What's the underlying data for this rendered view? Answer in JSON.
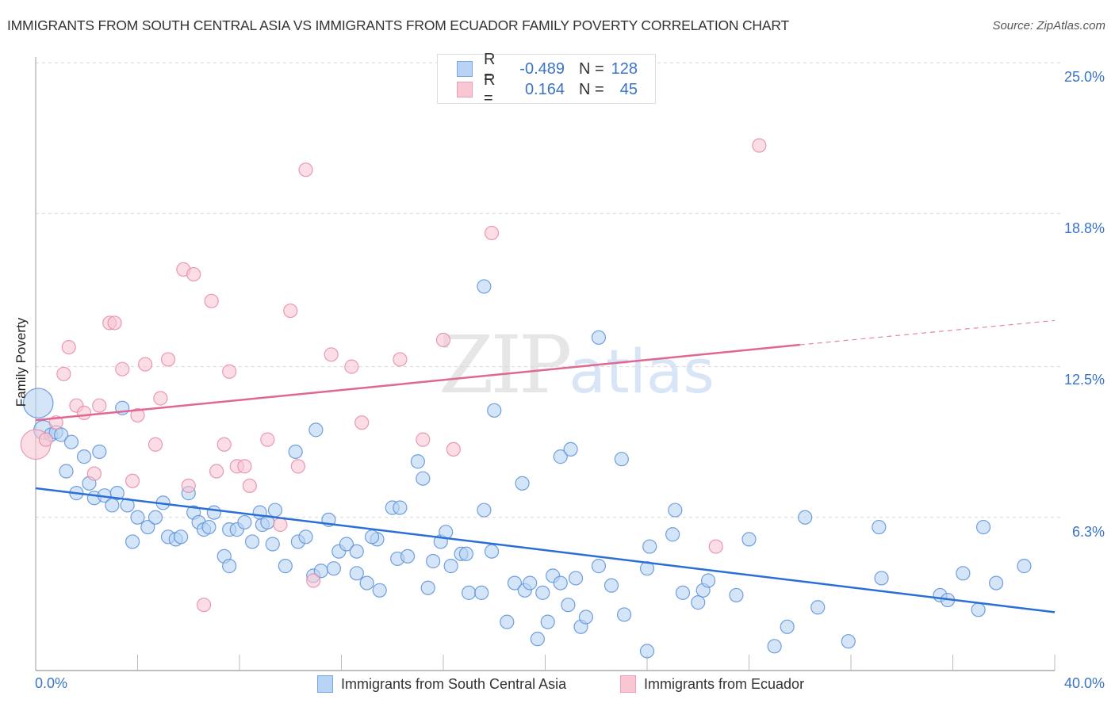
{
  "header": {
    "title": "IMMIGRANTS FROM SOUTH CENTRAL ASIA VS IMMIGRANTS FROM ECUADOR FAMILY POVERTY CORRELATION CHART",
    "source": "Source: ZipAtlas.com"
  },
  "watermark": {
    "zip": "ZIP",
    "atlas": "atlas"
  },
  "colors": {
    "blue_fill": "#b8d3f3",
    "blue_stroke": "#5b8fd9",
    "blue_line": "#2a6fd6",
    "pink_fill": "#f9c6d4",
    "pink_stroke": "#e58aa6",
    "pink_line": "#e06890",
    "tick_text": "#3a74c9"
  },
  "legend": {
    "rows": [
      {
        "r_label": "R =",
        "r_value": "-0.489",
        "n_label": "N =",
        "n_value": "128"
      },
      {
        "r_label": "R =",
        "r_value": "0.164",
        "n_label": "N =",
        "n_value": "45"
      }
    ]
  },
  "bottom_legend": [
    {
      "label": "Immigrants from South Central Asia"
    },
    {
      "label": "Immigrants from Ecuador"
    }
  ],
  "chart_data": {
    "type": "scatter",
    "title": "IMMIGRANTS FROM SOUTH CENTRAL ASIA VS IMMIGRANTS FROM ECUADOR FAMILY POVERTY CORRELATION CHART",
    "xlabel": "",
    "ylabel": "Family Poverty",
    "xlim": [
      0,
      40
    ],
    "ylim": [
      0,
      25.5
    ],
    "x_tick_labels": [
      "0.0%",
      "40.0%"
    ],
    "y_ticks": [
      6.3,
      12.5,
      18.8,
      25.0
    ],
    "y_tick_labels": [
      "6.3%",
      "12.5%",
      "18.8%",
      "25.0%"
    ],
    "grid": "horizontal dashed",
    "legend_position": "top-center",
    "series": [
      {
        "name": "Immigrants from South Central Asia",
        "R": -0.489,
        "N": 128,
        "trend": {
          "x": [
            0,
            40
          ],
          "y": [
            7.5,
            2.4
          ]
        },
        "points": [
          [
            0.1,
            11.0,
            2.2
          ],
          [
            0.3,
            9.9,
            1.4
          ],
          [
            0.6,
            9.7
          ],
          [
            0.8,
            9.8
          ],
          [
            1.0,
            9.7
          ],
          [
            1.4,
            9.4
          ],
          [
            1.2,
            8.2
          ],
          [
            1.9,
            8.8
          ],
          [
            2.5,
            9.0
          ],
          [
            1.6,
            7.3
          ],
          [
            2.1,
            7.7
          ],
          [
            2.3,
            7.1
          ],
          [
            2.7,
            7.2
          ],
          [
            3.2,
            7.3
          ],
          [
            3.0,
            6.8
          ],
          [
            3.6,
            6.8
          ],
          [
            3.4,
            10.8
          ],
          [
            4.0,
            6.3
          ],
          [
            4.4,
            5.9
          ],
          [
            4.7,
            6.3
          ],
          [
            5.0,
            6.9
          ],
          [
            3.8,
            5.3
          ],
          [
            5.2,
            5.5
          ],
          [
            5.5,
            5.4
          ],
          [
            5.7,
            5.5
          ],
          [
            6.0,
            7.3
          ],
          [
            6.2,
            6.5
          ],
          [
            6.4,
            6.1
          ],
          [
            6.6,
            5.8
          ],
          [
            6.8,
            5.9
          ],
          [
            7.0,
            6.5
          ],
          [
            7.6,
            5.8
          ],
          [
            7.9,
            5.8
          ],
          [
            7.4,
            4.7
          ],
          [
            7.6,
            4.3
          ],
          [
            8.2,
            6.1
          ],
          [
            8.5,
            5.3
          ],
          [
            8.9,
            6.0
          ],
          [
            8.8,
            6.5
          ],
          [
            9.1,
            6.1
          ],
          [
            9.4,
            6.6
          ],
          [
            9.3,
            5.2
          ],
          [
            9.8,
            4.3
          ],
          [
            10.3,
            5.3
          ],
          [
            10.6,
            5.5
          ],
          [
            10.9,
            3.9
          ],
          [
            11.2,
            4.1
          ],
          [
            11.5,
            6.2
          ],
          [
            11.0,
            9.9
          ],
          [
            10.2,
            9.0
          ],
          [
            11.7,
            4.2
          ],
          [
            11.9,
            4.9
          ],
          [
            12.2,
            5.2
          ],
          [
            12.6,
            4.9
          ],
          [
            12.6,
            4.0
          ],
          [
            13.0,
            3.6
          ],
          [
            13.4,
            5.4
          ],
          [
            13.2,
            5.5
          ],
          [
            13.5,
            3.3
          ],
          [
            14.0,
            6.7
          ],
          [
            14.3,
            6.7
          ],
          [
            14.2,
            4.6
          ],
          [
            14.6,
            4.7
          ],
          [
            15.0,
            8.6
          ],
          [
            15.2,
            7.9
          ],
          [
            15.4,
            3.4
          ],
          [
            15.6,
            4.5
          ],
          [
            15.9,
            5.3
          ],
          [
            16.1,
            5.7
          ],
          [
            16.3,
            4.3
          ],
          [
            16.7,
            4.8
          ],
          [
            16.9,
            4.8
          ],
          [
            17.0,
            3.2
          ],
          [
            17.5,
            3.2
          ],
          [
            17.6,
            6.6
          ],
          [
            17.9,
            4.9
          ],
          [
            18.0,
            10.7
          ],
          [
            17.6,
            15.8
          ],
          [
            18.5,
            2.0
          ],
          [
            18.8,
            3.6
          ],
          [
            19.2,
            3.3
          ],
          [
            19.4,
            3.6
          ],
          [
            19.1,
            7.7
          ],
          [
            19.7,
            1.3
          ],
          [
            19.9,
            3.2
          ],
          [
            20.1,
            2.0
          ],
          [
            20.3,
            3.9
          ],
          [
            20.6,
            3.6
          ],
          [
            20.9,
            2.7
          ],
          [
            20.6,
            8.8
          ],
          [
            21.0,
            9.1
          ],
          [
            21.2,
            3.8
          ],
          [
            21.4,
            1.8
          ],
          [
            21.6,
            2.2
          ],
          [
            22.1,
            4.3
          ],
          [
            22.6,
            3.5
          ],
          [
            23.1,
            2.3
          ],
          [
            23.0,
            8.7
          ],
          [
            24.0,
            4.2
          ],
          [
            24.1,
            5.1
          ],
          [
            24.0,
            0.8
          ],
          [
            25.0,
            5.6
          ],
          [
            25.1,
            6.6
          ],
          [
            25.4,
            3.2
          ],
          [
            26.0,
            2.8
          ],
          [
            26.2,
            3.3
          ],
          [
            26.4,
            3.7
          ],
          [
            27.5,
            3.1
          ],
          [
            28.0,
            5.4
          ],
          [
            29.0,
            1.0
          ],
          [
            29.5,
            1.8
          ],
          [
            30.2,
            6.3
          ],
          [
            30.7,
            2.6
          ],
          [
            31.9,
            1.2
          ],
          [
            33.1,
            5.9
          ],
          [
            33.2,
            3.8
          ],
          [
            35.5,
            3.1
          ],
          [
            35.8,
            2.9
          ],
          [
            36.4,
            4.0
          ],
          [
            37.0,
            2.5
          ],
          [
            37.2,
            5.9
          ],
          [
            37.7,
            3.6
          ],
          [
            38.8,
            4.3
          ],
          [
            22.1,
            13.7
          ]
        ]
      },
      {
        "name": "Immigrants from Ecuador",
        "R": 0.164,
        "N": 45,
        "trend": {
          "x": [
            0,
            30
          ],
          "y": [
            10.3,
            13.4
          ]
        },
        "trend_dashed": {
          "x": [
            30,
            40
          ],
          "y": [
            13.4,
            14.4
          ]
        },
        "points": [
          [
            0.0,
            9.3,
            2.2
          ],
          [
            0.4,
            9.5
          ],
          [
            0.8,
            10.2
          ],
          [
            1.3,
            13.3
          ],
          [
            1.1,
            12.2
          ],
          [
            1.6,
            10.9
          ],
          [
            1.9,
            10.6
          ],
          [
            2.3,
            8.1
          ],
          [
            2.5,
            10.9
          ],
          [
            2.9,
            14.3
          ],
          [
            3.1,
            14.3
          ],
          [
            3.4,
            12.4
          ],
          [
            3.8,
            7.8
          ],
          [
            4.0,
            10.5
          ],
          [
            4.3,
            12.6
          ],
          [
            4.7,
            9.3
          ],
          [
            4.9,
            11.2
          ],
          [
            5.2,
            12.8
          ],
          [
            5.8,
            16.5
          ],
          [
            6.0,
            7.6
          ],
          [
            6.2,
            16.3
          ],
          [
            6.6,
            2.7
          ],
          [
            6.9,
            15.2
          ],
          [
            7.1,
            8.2
          ],
          [
            7.4,
            9.3
          ],
          [
            7.6,
            12.3
          ],
          [
            7.9,
            8.4
          ],
          [
            8.2,
            8.4
          ],
          [
            8.4,
            7.6
          ],
          [
            9.1,
            9.5
          ],
          [
            9.6,
            6.0
          ],
          [
            10.0,
            14.8
          ],
          [
            10.3,
            8.4
          ],
          [
            10.6,
            20.6
          ],
          [
            10.9,
            3.7
          ],
          [
            11.6,
            13.0
          ],
          [
            12.4,
            12.5
          ],
          [
            12.8,
            10.2
          ],
          [
            14.3,
            12.8
          ],
          [
            15.2,
            9.5
          ],
          [
            16.0,
            13.6
          ],
          [
            16.4,
            9.1
          ],
          [
            17.9,
            18.0
          ],
          [
            26.7,
            5.1
          ],
          [
            28.4,
            21.6
          ]
        ]
      }
    ]
  }
}
